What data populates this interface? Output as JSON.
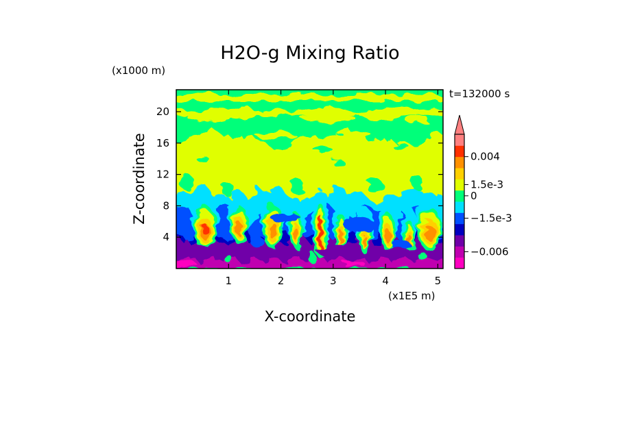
{
  "chart_data": {
    "type": "heatmap",
    "title": "H2O-g Mixing Ratio",
    "xlabel": "X-coordinate",
    "ylabel": "Z-coordinate",
    "x_unit": "(x1E5 m)",
    "y_unit": "(x1000 m)",
    "time_label": "t=132000 s",
    "xlim": [
      0,
      5.1
    ],
    "ylim": [
      0,
      22.8
    ],
    "x_ticks": [
      {
        "value": 1,
        "label": "1"
      },
      {
        "value": 2,
        "label": "2"
      },
      {
        "value": 3,
        "label": "3"
      },
      {
        "value": 4,
        "label": "4"
      },
      {
        "value": 5,
        "label": "5"
      }
    ],
    "y_ticks": [
      {
        "value": 4,
        "label": "4"
      },
      {
        "value": 8,
        "label": "8"
      },
      {
        "value": 12,
        "label": "12"
      },
      {
        "value": 16,
        "label": "16"
      },
      {
        "value": 20,
        "label": "20"
      }
    ],
    "colorbar": {
      "colors": [
        "#ff00c0",
        "#c000b0",
        "#7000a8",
        "#0000c0",
        "#0050ff",
        "#00e0ff",
        "#00ff7a",
        "#e0ff00",
        "#ffd000",
        "#ff9000",
        "#ff3000",
        "#ff8080"
      ],
      "labels": [
        {
          "level": 10,
          "text": "0.004"
        },
        {
          "level": 7.5,
          "text": "1.5e-3"
        },
        {
          "level": 6.5,
          "text": "0"
        },
        {
          "level": 4.5,
          "text": "−1.5e-3"
        },
        {
          "level": 1.5,
          "text": "−0.006"
        }
      ],
      "top_arrow": true
    },
    "field_regions": [
      {
        "band": "upper",
        "z_range": [
          16.5,
          22.8
        ],
        "dominant_color": "#00ff7a",
        "secondary_color": "#e0ff00"
      },
      {
        "band": "middle",
        "z_range": [
          9,
          16.5
        ],
        "dominant_color": "#e0ff00"
      },
      {
        "band": "transition",
        "z_range": [
          6,
          9
        ],
        "dominant_color": "#00e0ff"
      },
      {
        "band": "convective",
        "z_range": [
          3,
          7
        ],
        "dominant_color": "#0050ff",
        "plumes_color": "#ff9000"
      },
      {
        "band": "lower",
        "z_range": [
          0,
          3.5
        ],
        "dominant_color": "#7000a8"
      }
    ],
    "grid": false,
    "legend": "right colorbar"
  }
}
